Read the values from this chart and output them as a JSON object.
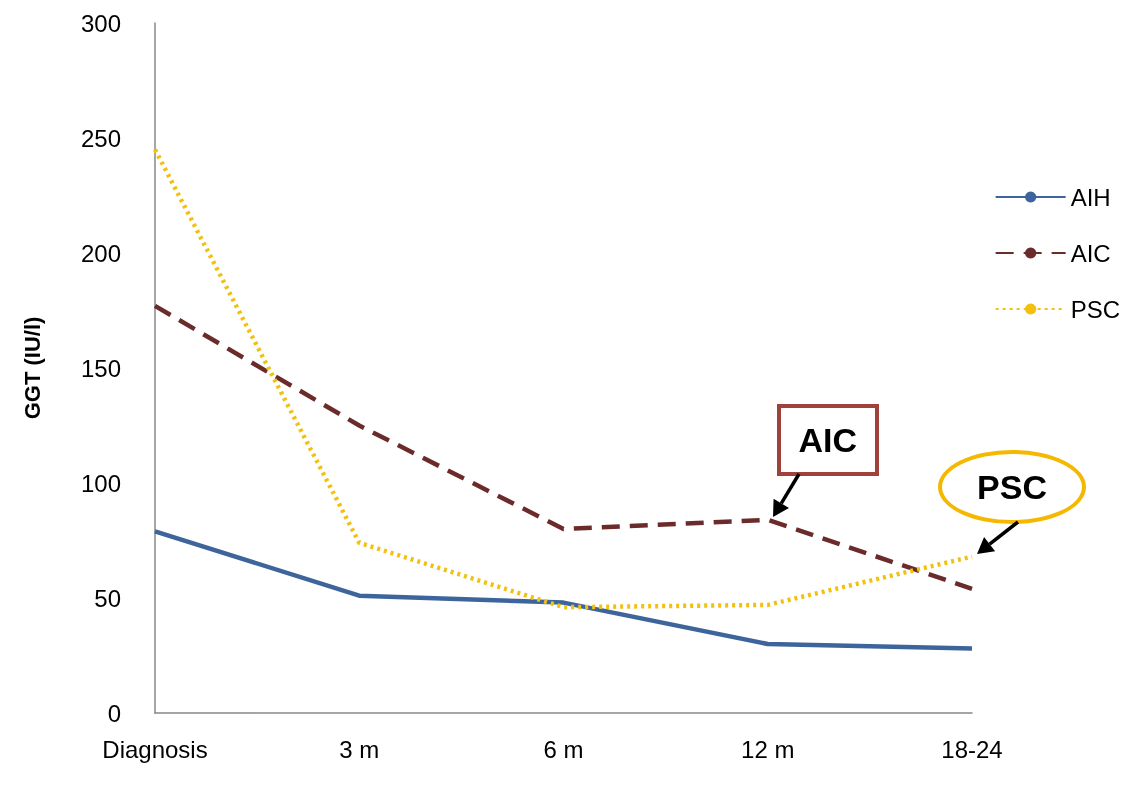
{
  "chart_data": {
    "type": "line",
    "ylabel": "GGT (IU/l)",
    "categories": [
      "Diagnosis",
      "3 m",
      "6 m",
      "12 m",
      "18-24"
    ],
    "series": [
      {
        "name": "AIH",
        "color": "#3d659c",
        "line_style": "solid",
        "values": [
          79,
          51,
          48,
          30,
          28
        ]
      },
      {
        "name": "AIC",
        "color": "#6b2b2b",
        "line_style": "dashed",
        "values": [
          177,
          125,
          80,
          84,
          54
        ]
      },
      {
        "name": "PSC",
        "color": "#f2c10f",
        "line_style": "dotted",
        "values": [
          245,
          74,
          46,
          47,
          68
        ]
      }
    ],
    "ylim": [
      0,
      300
    ],
    "yticks": [
      0,
      50,
      100,
      150,
      200,
      250,
      300
    ],
    "annotations": [
      {
        "text": "AIC",
        "x": "12 m",
        "y": 84
      },
      {
        "text": "PSC",
        "x": "18-24",
        "y": 68
      }
    ],
    "marker": "none",
    "grid": false,
    "legend": "right"
  }
}
